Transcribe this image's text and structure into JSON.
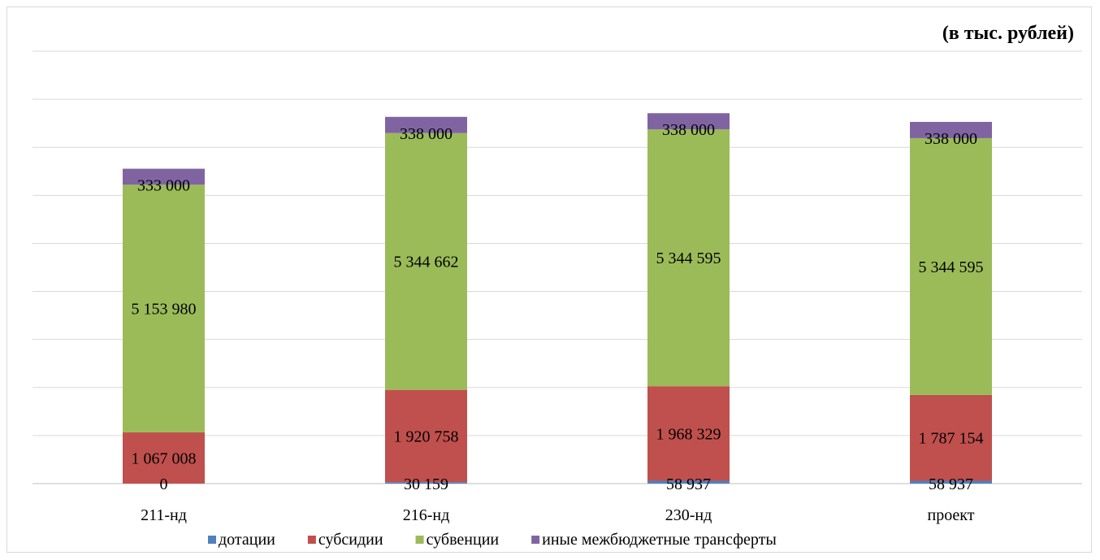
{
  "chart_data": {
    "type": "bar",
    "stacked": true,
    "unit_label": "(в тыс. рублей)",
    "categories": [
      "211-нд",
      "216-нд",
      "230-нд",
      "проект"
    ],
    "series": [
      {
        "name": "дотации",
        "color": "#4f81bd",
        "values": [
          0,
          30159,
          58937,
          58937
        ],
        "labels": [
          "0",
          "30 159",
          "58 937",
          "58 937"
        ]
      },
      {
        "name": "субсидии",
        "color": "#c0504d",
        "values": [
          1067008,
          1920758,
          1968329,
          1787154
        ],
        "labels": [
          "1 067 008",
          "1 920 758",
          "1 968 329",
          "1 787 154"
        ]
      },
      {
        "name": "субвенции",
        "color": "#9bbb59",
        "values": [
          5153980,
          5344662,
          5344595,
          5344595
        ],
        "labels": [
          "5 153 980",
          "5 344 662",
          "5 344 595",
          "5 344 595"
        ]
      },
      {
        "name": "иные межбюджетные трансферты",
        "color": "#8064a2",
        "values": [
          333000,
          338000,
          338000,
          338000
        ],
        "labels": [
          "333 000",
          "338 000",
          "338 000",
          "338 000"
        ]
      }
    ],
    "ylim": [
      0,
      9000000
    ],
    "y_gridlines": true,
    "y_axis_visible": false,
    "legend_position": "bottom"
  }
}
